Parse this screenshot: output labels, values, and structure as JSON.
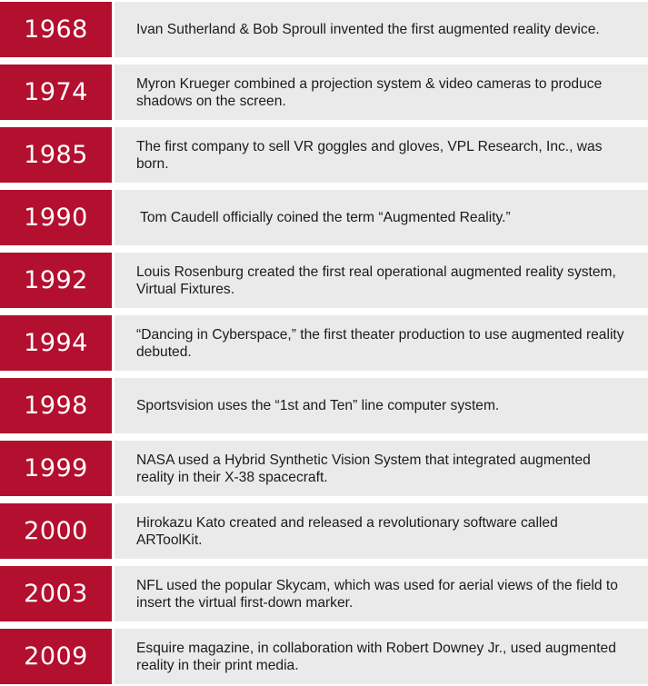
{
  "colors": {
    "year_background": "#b30f2e",
    "year_text": "#ffffff",
    "description_background": "#eaeaea",
    "description_text": "#1b1b1b"
  },
  "timeline": [
    {
      "year": "1968",
      "text": "Ivan Sutherland & Bob Sproull invented the first augmented reality device."
    },
    {
      "year": "1974",
      "text": "Myron Krueger combined a projection system & video cameras to produce shadows on the screen."
    },
    {
      "year": "1985",
      "text": "The first company to sell VR goggles and gloves, VPL Research, Inc., was born."
    },
    {
      "year": "1990",
      "text": " Tom Caudell officially coined the term “Augmented Reality.”"
    },
    {
      "year": "1992",
      "text": "Louis Rosenburg created the first real operational augmented reality system, Virtual Fixtures."
    },
    {
      "year": "1994",
      "text": "“Dancing in Cyberspace,” the first theater production to use augmented reality debuted."
    },
    {
      "year": "1998",
      "text": "Sportsvision uses the “1st and Ten” line computer system."
    },
    {
      "year": "1999",
      "text": "NASA used a Hybrid Synthetic Vision System that integrated augmented reality in their X-38 spacecraft."
    },
    {
      "year": "2000",
      "text": "Hirokazu Kato created and released a revolutionary software called ARToolKit."
    },
    {
      "year": "2003",
      "text": "NFL used the popular Skycam, which was used for aerial views of the field to insert the virtual first-down marker."
    },
    {
      "year": "2009",
      "text": "Esquire magazine, in collaboration with Robert Downey Jr., used augmented reality in their print media."
    }
  ]
}
